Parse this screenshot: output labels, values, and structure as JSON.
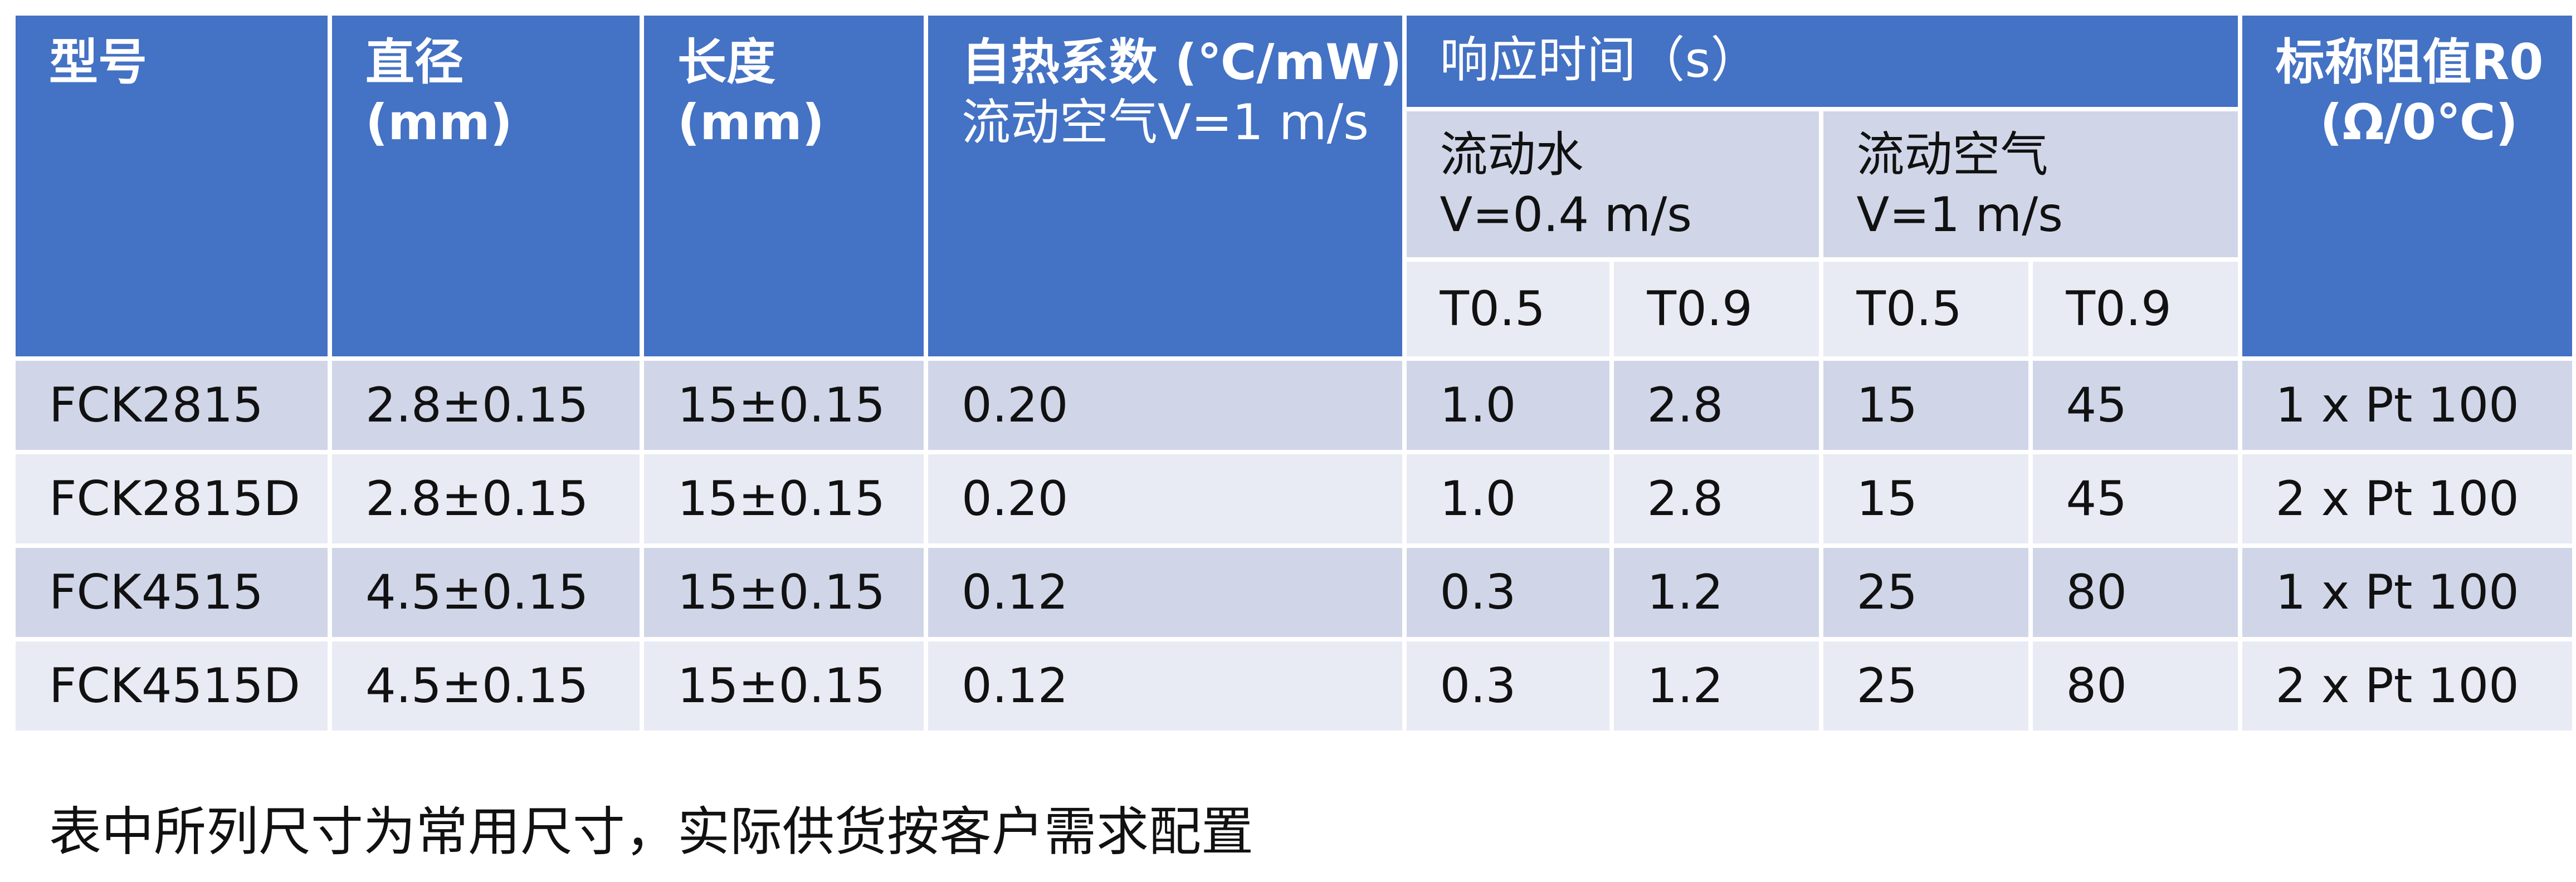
{
  "header": {
    "model": "型号",
    "diameter": [
      "直径",
      "(mm)"
    ],
    "length": [
      "长度",
      "(mm)"
    ],
    "self_heating": [
      "自热系数 (℃/mW)",
      "流动空气V=1 m/s"
    ],
    "response_time": "响应时间（s）",
    "flowing_water": [
      "流动水",
      "V=0.4 m/s"
    ],
    "flowing_air": [
      "流动空气",
      "V=1 m/s"
    ],
    "t_labels": [
      "T0.5",
      "T0.9",
      "T0.5",
      "T0.9"
    ],
    "nominal": [
      "标称阻值R0",
      "(Ω/0℃)"
    ]
  },
  "rows": [
    {
      "model": "FCK2815",
      "diameter": "2.8±0.15",
      "length": "15±0.15",
      "coef": "0.20",
      "w05": "1.0",
      "w09": "2.8",
      "a05": "15",
      "a09": "45",
      "r0": "1 x Pt 100"
    },
    {
      "model": "FCK2815D",
      "diameter": "2.8±0.15",
      "length": "15±0.15",
      "coef": "0.20",
      "w05": "1.0",
      "w09": "2.8",
      "a05": "15",
      "a09": "45",
      "r0": "2 x Pt 100"
    },
    {
      "model": "FCK4515",
      "diameter": "4.5±0.15",
      "length": "15±0.15",
      "coef": "0.12",
      "w05": "0.3",
      "w09": "1.2",
      "a05": "25",
      "a09": "80",
      "r0": "1 x Pt 100"
    },
    {
      "model": "FCK4515D",
      "diameter": "4.5±0.15",
      "length": "15±0.15",
      "coef": "0.12",
      "w05": "0.3",
      "w09": "1.2",
      "a05": "25",
      "a09": "80",
      "r0": "2 x Pt 100"
    }
  ],
  "footnote": "表中所列尺寸为常用尺寸，实际供货按客户需求配置",
  "colors": {
    "header_blue": "#4472c4",
    "row_dark": "#d0d6e8",
    "row_light": "#e8ebf4"
  }
}
